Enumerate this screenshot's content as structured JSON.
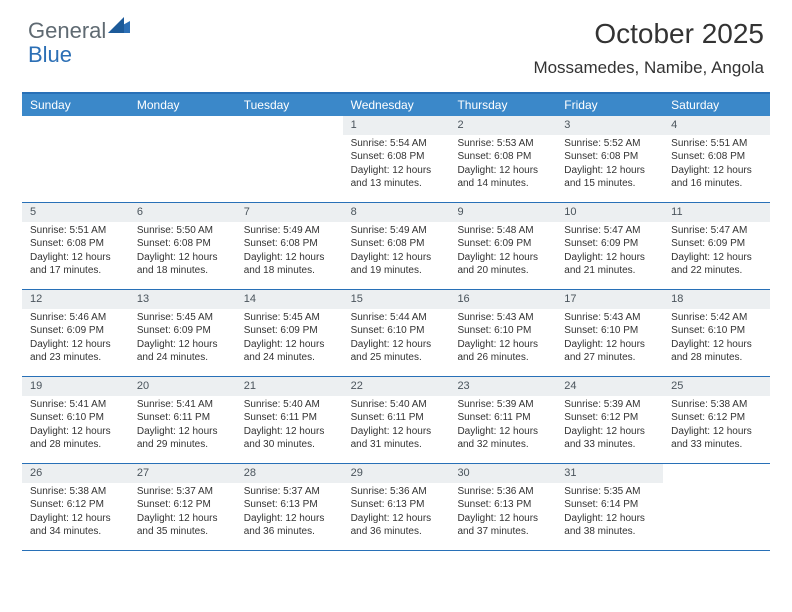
{
  "branding": {
    "logo_general": "General",
    "logo_blue": "Blue"
  },
  "title": {
    "month_year": "October 2025",
    "location": "Mossamedes, Namibe, Angola"
  },
  "colors": {
    "header_bg": "#3b88c9",
    "header_border": "#2870b7",
    "day_number_bg": "#eceff1",
    "logo_general": "#5f6a72",
    "logo_blue": "#2c6fb5"
  },
  "day_headers": [
    "Sunday",
    "Monday",
    "Tuesday",
    "Wednesday",
    "Thursday",
    "Friday",
    "Saturday"
  ],
  "weeks": [
    [
      {
        "day": "",
        "sunrise": "",
        "sunset": "",
        "daylight1": "",
        "daylight2": ""
      },
      {
        "day": "",
        "sunrise": "",
        "sunset": "",
        "daylight1": "",
        "daylight2": ""
      },
      {
        "day": "",
        "sunrise": "",
        "sunset": "",
        "daylight1": "",
        "daylight2": ""
      },
      {
        "day": "1",
        "sunrise": "Sunrise: 5:54 AM",
        "sunset": "Sunset: 6:08 PM",
        "daylight1": "Daylight: 12 hours",
        "daylight2": "and 13 minutes."
      },
      {
        "day": "2",
        "sunrise": "Sunrise: 5:53 AM",
        "sunset": "Sunset: 6:08 PM",
        "daylight1": "Daylight: 12 hours",
        "daylight2": "and 14 minutes."
      },
      {
        "day": "3",
        "sunrise": "Sunrise: 5:52 AM",
        "sunset": "Sunset: 6:08 PM",
        "daylight1": "Daylight: 12 hours",
        "daylight2": "and 15 minutes."
      },
      {
        "day": "4",
        "sunrise": "Sunrise: 5:51 AM",
        "sunset": "Sunset: 6:08 PM",
        "daylight1": "Daylight: 12 hours",
        "daylight2": "and 16 minutes."
      }
    ],
    [
      {
        "day": "5",
        "sunrise": "Sunrise: 5:51 AM",
        "sunset": "Sunset: 6:08 PM",
        "daylight1": "Daylight: 12 hours",
        "daylight2": "and 17 minutes."
      },
      {
        "day": "6",
        "sunrise": "Sunrise: 5:50 AM",
        "sunset": "Sunset: 6:08 PM",
        "daylight1": "Daylight: 12 hours",
        "daylight2": "and 18 minutes."
      },
      {
        "day": "7",
        "sunrise": "Sunrise: 5:49 AM",
        "sunset": "Sunset: 6:08 PM",
        "daylight1": "Daylight: 12 hours",
        "daylight2": "and 18 minutes."
      },
      {
        "day": "8",
        "sunrise": "Sunrise: 5:49 AM",
        "sunset": "Sunset: 6:08 PM",
        "daylight1": "Daylight: 12 hours",
        "daylight2": "and 19 minutes."
      },
      {
        "day": "9",
        "sunrise": "Sunrise: 5:48 AM",
        "sunset": "Sunset: 6:09 PM",
        "daylight1": "Daylight: 12 hours",
        "daylight2": "and 20 minutes."
      },
      {
        "day": "10",
        "sunrise": "Sunrise: 5:47 AM",
        "sunset": "Sunset: 6:09 PM",
        "daylight1": "Daylight: 12 hours",
        "daylight2": "and 21 minutes."
      },
      {
        "day": "11",
        "sunrise": "Sunrise: 5:47 AM",
        "sunset": "Sunset: 6:09 PM",
        "daylight1": "Daylight: 12 hours",
        "daylight2": "and 22 minutes."
      }
    ],
    [
      {
        "day": "12",
        "sunrise": "Sunrise: 5:46 AM",
        "sunset": "Sunset: 6:09 PM",
        "daylight1": "Daylight: 12 hours",
        "daylight2": "and 23 minutes."
      },
      {
        "day": "13",
        "sunrise": "Sunrise: 5:45 AM",
        "sunset": "Sunset: 6:09 PM",
        "daylight1": "Daylight: 12 hours",
        "daylight2": "and 24 minutes."
      },
      {
        "day": "14",
        "sunrise": "Sunrise: 5:45 AM",
        "sunset": "Sunset: 6:09 PM",
        "daylight1": "Daylight: 12 hours",
        "daylight2": "and 24 minutes."
      },
      {
        "day": "15",
        "sunrise": "Sunrise: 5:44 AM",
        "sunset": "Sunset: 6:10 PM",
        "daylight1": "Daylight: 12 hours",
        "daylight2": "and 25 minutes."
      },
      {
        "day": "16",
        "sunrise": "Sunrise: 5:43 AM",
        "sunset": "Sunset: 6:10 PM",
        "daylight1": "Daylight: 12 hours",
        "daylight2": "and 26 minutes."
      },
      {
        "day": "17",
        "sunrise": "Sunrise: 5:43 AM",
        "sunset": "Sunset: 6:10 PM",
        "daylight1": "Daylight: 12 hours",
        "daylight2": "and 27 minutes."
      },
      {
        "day": "18",
        "sunrise": "Sunrise: 5:42 AM",
        "sunset": "Sunset: 6:10 PM",
        "daylight1": "Daylight: 12 hours",
        "daylight2": "and 28 minutes."
      }
    ],
    [
      {
        "day": "19",
        "sunrise": "Sunrise: 5:41 AM",
        "sunset": "Sunset: 6:10 PM",
        "daylight1": "Daylight: 12 hours",
        "daylight2": "and 28 minutes."
      },
      {
        "day": "20",
        "sunrise": "Sunrise: 5:41 AM",
        "sunset": "Sunset: 6:11 PM",
        "daylight1": "Daylight: 12 hours",
        "daylight2": "and 29 minutes."
      },
      {
        "day": "21",
        "sunrise": "Sunrise: 5:40 AM",
        "sunset": "Sunset: 6:11 PM",
        "daylight1": "Daylight: 12 hours",
        "daylight2": "and 30 minutes."
      },
      {
        "day": "22",
        "sunrise": "Sunrise: 5:40 AM",
        "sunset": "Sunset: 6:11 PM",
        "daylight1": "Daylight: 12 hours",
        "daylight2": "and 31 minutes."
      },
      {
        "day": "23",
        "sunrise": "Sunrise: 5:39 AM",
        "sunset": "Sunset: 6:11 PM",
        "daylight1": "Daylight: 12 hours",
        "daylight2": "and 32 minutes."
      },
      {
        "day": "24",
        "sunrise": "Sunrise: 5:39 AM",
        "sunset": "Sunset: 6:12 PM",
        "daylight1": "Daylight: 12 hours",
        "daylight2": "and 33 minutes."
      },
      {
        "day": "25",
        "sunrise": "Sunrise: 5:38 AM",
        "sunset": "Sunset: 6:12 PM",
        "daylight1": "Daylight: 12 hours",
        "daylight2": "and 33 minutes."
      }
    ],
    [
      {
        "day": "26",
        "sunrise": "Sunrise: 5:38 AM",
        "sunset": "Sunset: 6:12 PM",
        "daylight1": "Daylight: 12 hours",
        "daylight2": "and 34 minutes."
      },
      {
        "day": "27",
        "sunrise": "Sunrise: 5:37 AM",
        "sunset": "Sunset: 6:12 PM",
        "daylight1": "Daylight: 12 hours",
        "daylight2": "and 35 minutes."
      },
      {
        "day": "28",
        "sunrise": "Sunrise: 5:37 AM",
        "sunset": "Sunset: 6:13 PM",
        "daylight1": "Daylight: 12 hours",
        "daylight2": "and 36 minutes."
      },
      {
        "day": "29",
        "sunrise": "Sunrise: 5:36 AM",
        "sunset": "Sunset: 6:13 PM",
        "daylight1": "Daylight: 12 hours",
        "daylight2": "and 36 minutes."
      },
      {
        "day": "30",
        "sunrise": "Sunrise: 5:36 AM",
        "sunset": "Sunset: 6:13 PM",
        "daylight1": "Daylight: 12 hours",
        "daylight2": "and 37 minutes."
      },
      {
        "day": "31",
        "sunrise": "Sunrise: 5:35 AM",
        "sunset": "Sunset: 6:14 PM",
        "daylight1": "Daylight: 12 hours",
        "daylight2": "and 38 minutes."
      },
      {
        "day": "",
        "sunrise": "",
        "sunset": "",
        "daylight1": "",
        "daylight2": ""
      }
    ]
  ]
}
